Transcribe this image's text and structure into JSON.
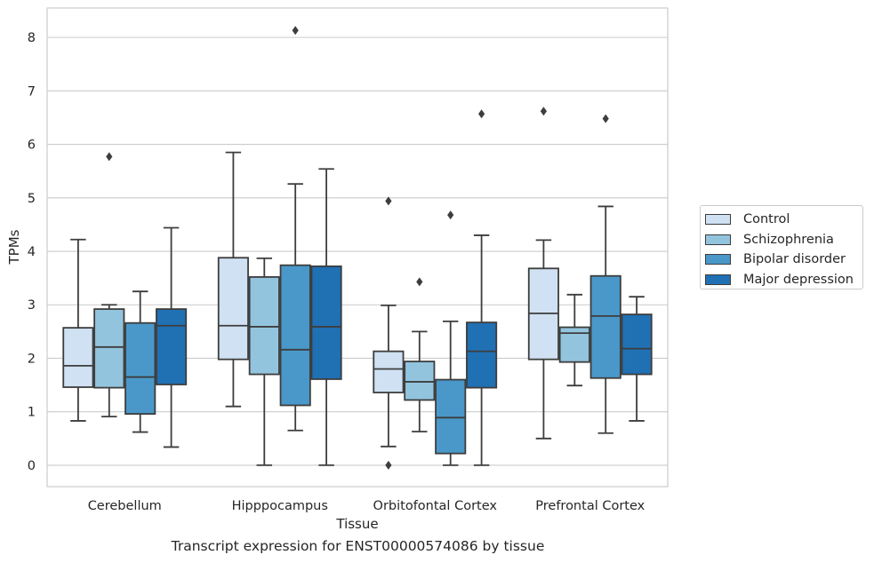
{
  "caption": "Transcript expression for ENST00000574086 by tissue",
  "chart_data": {
    "type": "box",
    "xlabel": "Tissue",
    "ylabel": "TPMs",
    "ylim": [
      -0.4,
      8.55
    ],
    "yticks": [
      0,
      1,
      2,
      3,
      4,
      5,
      6,
      7,
      8
    ],
    "grid": true,
    "legend_position": "right",
    "categories": [
      "Cerebellum",
      "Hipppocampus",
      "Orbitofontal Cortex",
      "Prefrontal Cortex"
    ],
    "series": [
      {
        "name": "Control",
        "color": "#cfe1f2",
        "boxes": [
          {
            "whisker_low": 0.83,
            "q1": 1.46,
            "median": 1.86,
            "q3": 2.57,
            "whisker_high": 4.22,
            "outliers": []
          },
          {
            "whisker_low": 1.1,
            "q1": 1.98,
            "median": 2.61,
            "q3": 3.88,
            "whisker_high": 5.85,
            "outliers": []
          },
          {
            "whisker_low": 0.35,
            "q1": 1.36,
            "median": 1.8,
            "q3": 2.13,
            "whisker_high": 2.99,
            "outliers": [
              0.0,
              4.94
            ]
          },
          {
            "whisker_low": 0.5,
            "q1": 1.98,
            "median": 2.84,
            "q3": 3.68,
            "whisker_high": 4.21,
            "outliers": [
              6.62
            ]
          }
        ]
      },
      {
        "name": "Schizophrenia",
        "color": "#93c4de",
        "boxes": [
          {
            "whisker_low": 0.91,
            "q1": 1.45,
            "median": 2.21,
            "q3": 2.92,
            "whisker_high": 3.0,
            "outliers": [
              5.77
            ]
          },
          {
            "whisker_low": 0.0,
            "q1": 1.7,
            "median": 2.59,
            "q3": 3.52,
            "whisker_high": 3.87,
            "outliers": []
          },
          {
            "whisker_low": 0.63,
            "q1": 1.22,
            "median": 1.56,
            "q3": 1.94,
            "whisker_high": 2.5,
            "outliers": [
              3.43
            ]
          },
          {
            "whisker_low": 1.49,
            "q1": 1.93,
            "median": 2.47,
            "q3": 2.58,
            "whisker_high": 3.19,
            "outliers": []
          }
        ]
      },
      {
        "name": "Bipolar disorder",
        "color": "#4a98c9",
        "boxes": [
          {
            "whisker_low": 0.62,
            "q1": 0.96,
            "median": 1.65,
            "q3": 2.66,
            "whisker_high": 3.25,
            "outliers": []
          },
          {
            "whisker_low": 0.65,
            "q1": 1.12,
            "median": 2.16,
            "q3": 3.74,
            "whisker_high": 5.26,
            "outliers": [
              8.13
            ]
          },
          {
            "whisker_low": 0.0,
            "q1": 0.22,
            "median": 0.89,
            "q3": 1.6,
            "whisker_high": 2.69,
            "outliers": [
              4.68
            ]
          },
          {
            "whisker_low": 0.6,
            "q1": 1.63,
            "median": 2.79,
            "q3": 3.54,
            "whisker_high": 4.84,
            "outliers": [
              6.48
            ]
          }
        ]
      },
      {
        "name": "Major depression",
        "color": "#2070b4",
        "boxes": [
          {
            "whisker_low": 0.34,
            "q1": 1.51,
            "median": 2.61,
            "q3": 2.92,
            "whisker_high": 4.44,
            "outliers": []
          },
          {
            "whisker_low": 0.0,
            "q1": 1.61,
            "median": 2.59,
            "q3": 3.72,
            "whisker_high": 5.54,
            "outliers": []
          },
          {
            "whisker_low": 0.0,
            "q1": 1.45,
            "median": 2.13,
            "q3": 2.67,
            "whisker_high": 4.3,
            "outliers": [
              6.57
            ]
          },
          {
            "whisker_low": 0.83,
            "q1": 1.7,
            "median": 2.18,
            "q3": 2.82,
            "whisker_high": 3.15,
            "outliers": []
          }
        ]
      }
    ]
  }
}
